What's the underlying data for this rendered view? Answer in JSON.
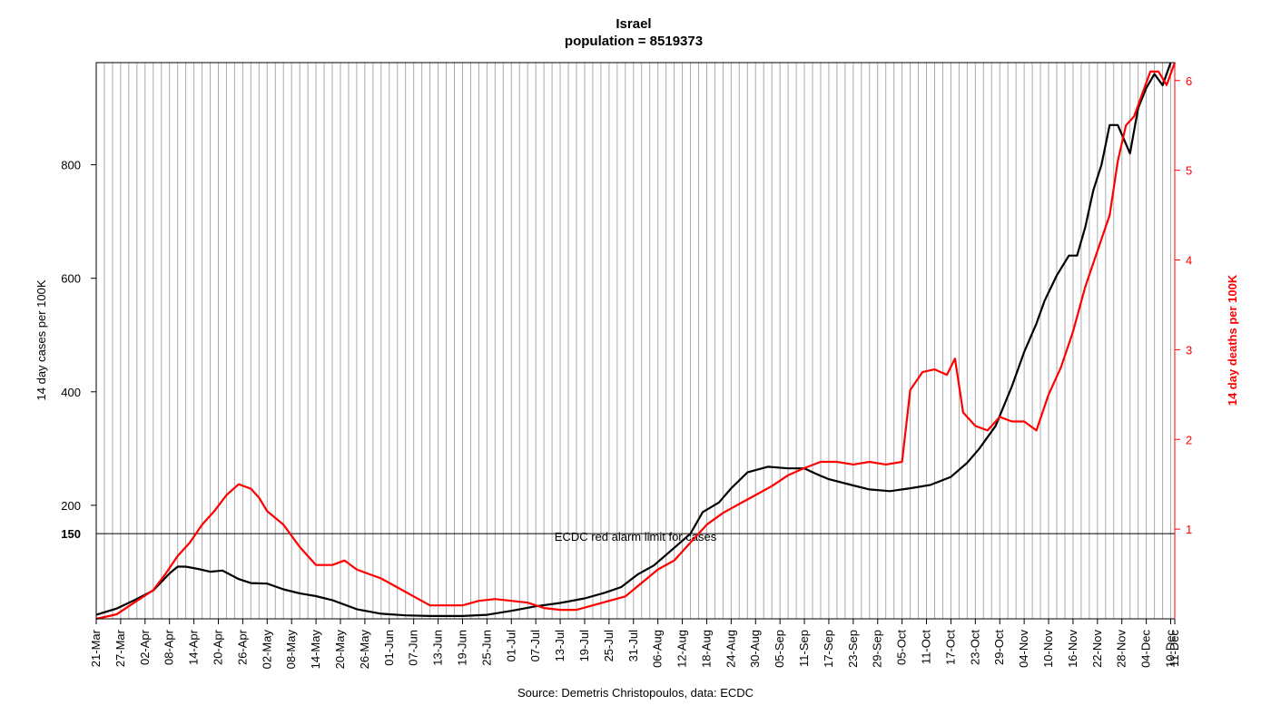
{
  "chart_data": {
    "type": "line",
    "title": "Israel",
    "subtitle": "population = 8519373",
    "caption": "Source: Demetris Christopoulos, data: ECDC",
    "ylabel_left": "14 day cases per 100K",
    "ylabel_right": "14 day deaths per 100K",
    "x_tick_labels": [
      "21-Mar",
      "27-Mar",
      "02-Apr",
      "08-Apr",
      "14-Apr",
      "20-Apr",
      "26-Apr",
      "02-May",
      "08-May",
      "14-May",
      "20-May",
      "26-May",
      "01-Jun",
      "07-Jun",
      "13-Jun",
      "19-Jun",
      "25-Jun",
      "01-Jul",
      "07-Jul",
      "13-Jul",
      "19-Jul",
      "25-Jul",
      "31-Jul",
      "06-Aug",
      "12-Aug",
      "18-Aug",
      "24-Aug",
      "30-Aug",
      "05-Sep",
      "11-Sep",
      "17-Sep",
      "23-Sep",
      "29-Sep",
      "05-Oct",
      "11-Oct",
      "17-Oct",
      "23-Oct",
      "29-Oct",
      "04-Nov",
      "10-Nov",
      "16-Nov",
      "22-Nov",
      "28-Nov",
      "04-Dec",
      "10-Dec",
      "11-Dec"
    ],
    "xlim_days": [
      0,
      265
    ],
    "ylim_left": [
      0,
      980
    ],
    "ylim_right": [
      0,
      6.2
    ],
    "y_ticks_left": [
      "200",
      "400",
      "600",
      "800"
    ],
    "y_ticks_right": [
      "1",
      "2",
      "3",
      "4",
      "5",
      "6"
    ],
    "reference_line": {
      "value": 150,
      "value_label": "150",
      "label": "ECDC red alarm limit for cases",
      "color": "#000000"
    },
    "grid": "vertical",
    "series": [
      {
        "axis": "left",
        "color": "#000000",
        "points": [
          [
            0,
            7
          ],
          [
            5,
            18
          ],
          [
            10,
            35
          ],
          [
            14,
            50
          ],
          [
            18,
            80
          ],
          [
            20,
            92
          ],
          [
            22,
            92
          ],
          [
            25,
            88
          ],
          [
            28,
            83
          ],
          [
            31,
            85
          ],
          [
            35,
            70
          ],
          [
            38,
            63
          ],
          [
            42,
            62
          ],
          [
            46,
            52
          ],
          [
            50,
            45
          ],
          [
            54,
            40
          ],
          [
            58,
            33
          ],
          [
            64,
            17
          ],
          [
            70,
            9
          ],
          [
            76,
            6
          ],
          [
            82,
            5
          ],
          [
            90,
            5
          ],
          [
            96,
            7
          ],
          [
            102,
            14
          ],
          [
            108,
            22
          ],
          [
            114,
            28
          ],
          [
            120,
            36
          ],
          [
            125,
            46
          ],
          [
            129,
            56
          ],
          [
            133,
            78
          ],
          [
            137,
            94
          ],
          [
            142,
            125
          ],
          [
            146,
            150
          ],
          [
            149,
            188
          ],
          [
            153,
            205
          ],
          [
            156,
            230
          ],
          [
            160,
            258
          ],
          [
            165,
            268
          ],
          [
            170,
            265
          ],
          [
            174,
            265
          ],
          [
            177,
            255
          ],
          [
            180,
            246
          ],
          [
            186,
            235
          ],
          [
            190,
            228
          ],
          [
            195,
            225
          ],
          [
            200,
            230
          ],
          [
            205,
            236
          ],
          [
            210,
            250
          ],
          [
            214,
            275
          ],
          [
            217,
            300
          ],
          [
            221,
            340
          ],
          [
            225,
            410
          ],
          [
            228,
            470
          ],
          [
            231,
            520
          ],
          [
            233,
            560
          ],
          [
            236,
            605
          ],
          [
            239,
            640
          ],
          [
            241,
            640
          ],
          [
            243,
            690
          ],
          [
            245,
            755
          ],
          [
            247,
            800
          ],
          [
            249,
            870
          ],
          [
            251,
            870
          ],
          [
            254,
            820
          ],
          [
            256,
            900
          ],
          [
            258,
            935
          ],
          [
            260,
            960
          ],
          [
            262,
            940
          ],
          [
            264,
            980
          ]
        ]
      },
      {
        "axis": "right",
        "color": "#ff0000",
        "points": [
          [
            0,
            0
          ],
          [
            5,
            0.05
          ],
          [
            10,
            0.2
          ],
          [
            14,
            0.32
          ],
          [
            17,
            0.5
          ],
          [
            20,
            0.7
          ],
          [
            23,
            0.85
          ],
          [
            26,
            1.05
          ],
          [
            29,
            1.2
          ],
          [
            32,
            1.38
          ],
          [
            35,
            1.5
          ],
          [
            38,
            1.45
          ],
          [
            40,
            1.35
          ],
          [
            42,
            1.2
          ],
          [
            46,
            1.05
          ],
          [
            50,
            0.8
          ],
          [
            54,
            0.6
          ],
          [
            58,
            0.6
          ],
          [
            61,
            0.65
          ],
          [
            64,
            0.55
          ],
          [
            67,
            0.5
          ],
          [
            70,
            0.45
          ],
          [
            74,
            0.35
          ],
          [
            78,
            0.25
          ],
          [
            82,
            0.15
          ],
          [
            86,
            0.15
          ],
          [
            90,
            0.15
          ],
          [
            94,
            0.2
          ],
          [
            98,
            0.22
          ],
          [
            102,
            0.2
          ],
          [
            106,
            0.18
          ],
          [
            110,
            0.12
          ],
          [
            114,
            0.1
          ],
          [
            118,
            0.1
          ],
          [
            122,
            0.15
          ],
          [
            126,
            0.2
          ],
          [
            130,
            0.25
          ],
          [
            134,
            0.4
          ],
          [
            138,
            0.55
          ],
          [
            142,
            0.65
          ],
          [
            146,
            0.85
          ],
          [
            150,
            1.05
          ],
          [
            154,
            1.18
          ],
          [
            158,
            1.28
          ],
          [
            162,
            1.38
          ],
          [
            166,
            1.48
          ],
          [
            170,
            1.6
          ],
          [
            174,
            1.68
          ],
          [
            178,
            1.75
          ],
          [
            182,
            1.75
          ],
          [
            186,
            1.72
          ],
          [
            190,
            1.75
          ],
          [
            194,
            1.72
          ],
          [
            198,
            1.75
          ],
          [
            200,
            2.55
          ],
          [
            203,
            2.75
          ],
          [
            206,
            2.78
          ],
          [
            209,
            2.72
          ],
          [
            211,
            2.9
          ],
          [
            213,
            2.3
          ],
          [
            216,
            2.15
          ],
          [
            219,
            2.1
          ],
          [
            222,
            2.25
          ],
          [
            225,
            2.2
          ],
          [
            228,
            2.2
          ],
          [
            231,
            2.1
          ],
          [
            234,
            2.5
          ],
          [
            237,
            2.8
          ],
          [
            240,
            3.2
          ],
          [
            243,
            3.7
          ],
          [
            246,
            4.1
          ],
          [
            249,
            4.5
          ],
          [
            251,
            5.1
          ],
          [
            253,
            5.5
          ],
          [
            255,
            5.6
          ],
          [
            257,
            5.85
          ],
          [
            259,
            6.1
          ],
          [
            261,
            6.1
          ],
          [
            263,
            5.95
          ],
          [
            265,
            6.2
          ]
        ]
      }
    ]
  }
}
